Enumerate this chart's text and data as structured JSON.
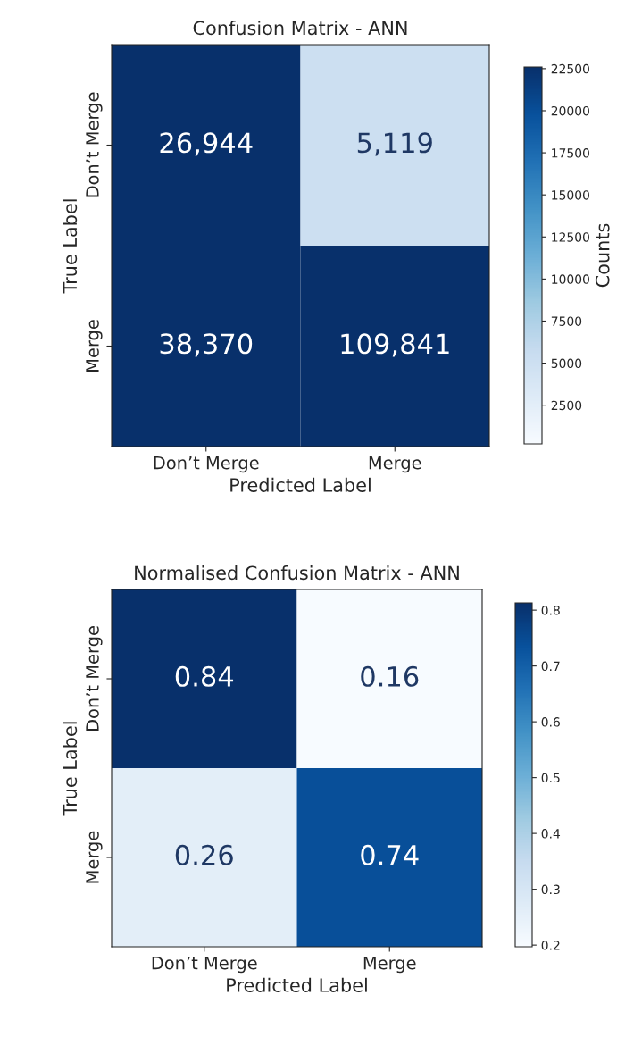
{
  "chart_data": [
    {
      "type": "heatmap",
      "title": "Confusion Matrix - ANN",
      "xlabel": "Predicted Label",
      "ylabel": "True Label",
      "clabel": "Counts",
      "categories": [
        "Don’t Merge",
        "Merge"
      ],
      "y_categories": [
        "Don’t Merge",
        "Merge"
      ],
      "cells": [
        [
          26944,
          5119
        ],
        [
          38370,
          109841
        ]
      ],
      "cell_labels": [
        [
          "26,944",
          "5,119"
        ],
        [
          "38,370",
          "109,841"
        ]
      ],
      "clim": [
        200,
        22600
      ],
      "cticks": [
        2500,
        5000,
        7500,
        10000,
        12500,
        15000,
        17500,
        20000,
        22500
      ]
    },
    {
      "type": "heatmap",
      "title": "Normalised Confusion Matrix - ANN",
      "xlabel": "Predicted Label",
      "ylabel": "True Label",
      "categories": [
        "Don’t Merge",
        "Merge"
      ],
      "y_categories": [
        "Don’t Merge",
        "Merge"
      ],
      "cells": [
        [
          0.84,
          0.16
        ],
        [
          0.26,
          0.74
        ]
      ],
      "data_labels": true,
      "clim": [
        0.197,
        0.813
      ],
      "cticks": [
        0.2,
        0.3,
        0.4,
        0.5,
        0.6,
        0.7,
        0.8
      ]
    }
  ]
}
